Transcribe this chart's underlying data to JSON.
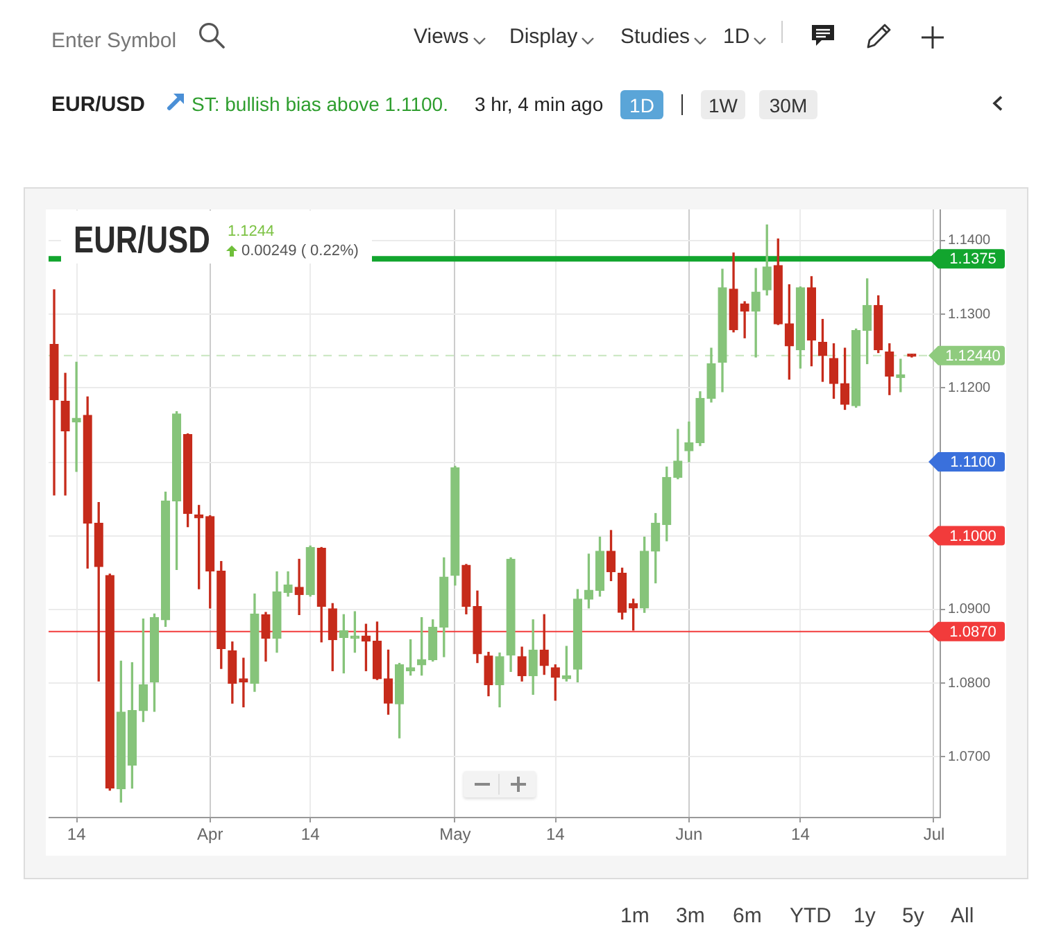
{
  "chart_data": {
    "type": "candlestick",
    "title": "EUR/USD",
    "annotations": [
      "Enter Symbol",
      "Views",
      "Display",
      "Studies",
      "1D",
      "EUR/USD",
      "ST: bullish bias above 1.1100.",
      "3 hr, 4 min ago",
      "1D",
      "1W",
      "30M",
      "1.1244",
      "0.00249 ( 0.22%)",
      "1m",
      "3m",
      "6m",
      "YTD",
      "1y",
      "5y",
      "All",
      "1.1100",
      "1.1000"
    ],
    "categories": [
      null,
      null,
      "14",
      null,
      null,
      null,
      null,
      null,
      null,
      null,
      null,
      null,
      null,
      null,
      "Apr",
      null,
      null,
      null,
      null,
      null,
      null,
      null,
      null,
      "14",
      null,
      null,
      null,
      null,
      null,
      null,
      null,
      null,
      null,
      null,
      null,
      null,
      "May",
      null,
      null,
      null,
      null,
      null,
      null,
      null,
      null,
      "14",
      null,
      null,
      null,
      null,
      null,
      null,
      null,
      null,
      null,
      null,
      null,
      "Jun",
      null,
      null,
      null,
      null,
      null,
      null,
      null,
      null,
      null,
      "14",
      null,
      null,
      null,
      null,
      null,
      null,
      null,
      null,
      null,
      null,
      null,
      "Jul"
    ],
    "ohlc": [
      [
        1.1259,
        1.1333,
        1.1055,
        1.1184
      ],
      [
        1.1182,
        1.122,
        1.1055,
        1.1142
      ],
      [
        1.1154,
        1.1235,
        1.1087,
        1.1159
      ],
      [
        1.1163,
        1.1188,
        1.0956,
        1.1017
      ],
      [
        1.1017,
        1.1045,
        1.0803,
        1.0958
      ],
      [
        1.0946,
        1.0948,
        1.0655,
        1.0658
      ],
      [
        1.0657,
        1.083,
        1.0639,
        1.0761
      ],
      [
        1.0689,
        1.0828,
        1.0658,
        1.0763
      ],
      [
        1.0763,
        1.0887,
        1.0748,
        1.0798
      ],
      [
        1.0802,
        1.0894,
        1.0762,
        1.0889
      ],
      [
        1.0886,
        1.1059,
        1.0877,
        1.1047
      ],
      [
        1.1047,
        1.1168,
        1.0954,
        1.1165
      ],
      [
        1.1137,
        1.1138,
        1.1012,
        1.103
      ],
      [
        1.1028,
        1.1041,
        1.0928,
        1.1024
      ],
      [
        1.1026,
        1.1027,
        1.0902,
        1.0952
      ],
      [
        1.0952,
        1.0965,
        1.082,
        1.0847
      ],
      [
        1.0844,
        1.0856,
        1.0773,
        1.08
      ],
      [
        1.0806,
        1.0834,
        1.0768,
        1.0802
      ],
      [
        1.08,
        1.0921,
        1.0789,
        1.0894
      ],
      [
        1.0893,
        1.0896,
        1.083,
        1.0861
      ],
      [
        1.0861,
        1.0951,
        1.0842,
        1.0924
      ],
      [
        1.0923,
        1.0951,
        1.0918,
        1.0933
      ],
      [
        1.093,
        1.0968,
        1.0893,
        1.092
      ],
      [
        1.092,
        1.0986,
        1.0918,
        1.0984
      ],
      [
        1.0983,
        1.0984,
        1.0856,
        1.0904
      ],
      [
        1.0901,
        1.0908,
        1.0817,
        1.0859
      ],
      [
        1.0862,
        1.0893,
        1.0814,
        1.0871
      ],
      [
        1.0861,
        1.0897,
        1.0842,
        1.0864
      ],
      [
        1.0864,
        1.088,
        1.0817,
        1.0857
      ],
      [
        1.0857,
        1.0883,
        1.0805,
        1.0806
      ],
      [
        1.0806,
        1.0845,
        1.0758,
        1.0773
      ],
      [
        1.0772,
        1.0827,
        1.0726,
        1.0825
      ],
      [
        1.0817,
        1.0859,
        1.0811,
        1.0821
      ],
      [
        1.0825,
        1.0889,
        1.0811,
        1.0832
      ],
      [
        1.0832,
        1.0886,
        1.083,
        1.0876
      ],
      [
        1.0876,
        1.097,
        1.0836,
        1.0944
      ],
      [
        1.0946,
        1.1094,
        1.0933,
        1.1092
      ],
      [
        1.096,
        1.0961,
        1.0894,
        1.0904
      ],
      [
        1.0904,
        1.0925,
        1.0828,
        1.084
      ],
      [
        1.0837,
        1.0842,
        1.0783,
        1.0798
      ],
      [
        1.0798,
        1.0841,
        1.0768,
        1.0836
      ],
      [
        1.0838,
        1.097,
        1.0816,
        1.0968
      ],
      [
        1.0836,
        1.0849,
        1.0803,
        1.081
      ],
      [
        1.081,
        1.0886,
        1.0785,
        1.0845
      ],
      [
        1.0845,
        1.0893,
        1.0812,
        1.0824
      ],
      [
        1.0821,
        1.0825,
        1.0777,
        1.0808
      ],
      [
        1.0806,
        1.085,
        1.0803,
        1.081
      ],
      [
        1.0819,
        1.0927,
        1.0802,
        1.0914
      ],
      [
        1.0914,
        1.0975,
        1.0902,
        1.0926
      ],
      [
        1.0926,
        1.0998,
        1.0918,
        1.0979
      ],
      [
        1.0979,
        1.1007,
        1.0939,
        1.0951
      ],
      [
        1.0949,
        1.0956,
        1.0887,
        1.0896
      ],
      [
        1.0908,
        1.0914,
        1.0872,
        1.0902
      ],
      [
        1.0902,
        1.0998,
        1.0896,
        1.0979
      ],
      [
        1.0979,
        1.103,
        1.0936,
        1.1017
      ],
      [
        1.1015,
        1.1093,
        1.0993,
        1.1079
      ],
      [
        1.1079,
        1.1144,
        1.1077,
        1.1101
      ],
      [
        1.1115,
        1.1154,
        1.11,
        1.1126
      ],
      [
        1.1126,
        1.1195,
        1.1122,
        1.1186
      ],
      [
        1.1186,
        1.1254,
        1.1181,
        1.1233
      ],
      [
        1.1235,
        1.1361,
        1.1195,
        1.1336
      ],
      [
        1.1334,
        1.1383,
        1.1276,
        1.1279
      ],
      [
        1.1314,
        1.1317,
        1.1268,
        1.1304
      ],
      [
        1.1304,
        1.1362,
        1.1242,
        1.133
      ],
      [
        1.1333,
        1.1421,
        1.1326,
        1.1364
      ],
      [
        1.1366,
        1.1402,
        1.1286,
        1.1287
      ],
      [
        1.1287,
        1.134,
        1.1212,
        1.1257
      ],
      [
        1.1252,
        1.1337,
        1.1227,
        1.1336
      ],
      [
        1.1336,
        1.1351,
        1.123,
        1.1265
      ],
      [
        1.1262,
        1.1293,
        1.1209,
        1.1244
      ],
      [
        1.124,
        1.126,
        1.1186,
        1.1206
      ],
      [
        1.1206,
        1.1254,
        1.1171,
        1.1178
      ],
      [
        1.1176,
        1.128,
        1.1174,
        1.1278
      ],
      [
        1.1278,
        1.1348,
        1.1233,
        1.1312
      ],
      [
        1.1312,
        1.1325,
        1.1248,
        1.1252
      ],
      [
        1.1249,
        1.126,
        1.1191,
        1.1216
      ],
      [
        1.1214,
        1.1239,
        1.1195,
        1.1218
      ],
      [
        1.1246,
        1.1246,
        1.1242,
        1.1243
      ],
      null,
      null
    ],
    "colors": [
      "#c62b1b",
      "#c62b1b",
      "#86c47a",
      "#c62b1b",
      "#c62b1b",
      "#c62b1b",
      "#86c47a",
      "#86c47a",
      "#86c47a",
      "#86c47a",
      "#86c47a",
      "#86c47a",
      "#c62b1b",
      "#c62b1b",
      "#c62b1b",
      "#c62b1b",
      "#c62b1b",
      "#c62b1b",
      "#86c47a",
      "#c62b1b",
      "#86c47a",
      "#86c47a",
      "#c62b1b",
      "#86c47a",
      "#c62b1b",
      "#c62b1b",
      "#86c47a",
      "#86c47a",
      "#c62b1b",
      "#c62b1b",
      "#c62b1b",
      "#86c47a",
      "#86c47a",
      "#86c47a",
      "#86c47a",
      "#86c47a",
      "#86c47a",
      "#c62b1b",
      "#c62b1b",
      "#c62b1b",
      "#86c47a",
      "#86c47a",
      "#c62b1b",
      "#86c47a",
      "#c62b1b",
      "#c62b1b",
      "#86c47a",
      "#86c47a",
      "#86c47a",
      "#86c47a",
      "#c62b1b",
      "#c62b1b",
      "#c62b1b",
      "#86c47a",
      "#86c47a",
      "#86c47a",
      "#86c47a",
      "#86c47a",
      "#86c47a",
      "#86c47a",
      "#86c47a",
      "#c62b1b",
      "#c62b1b",
      "#86c47a",
      "#86c47a",
      "#c62b1b",
      "#c62b1b",
      "#86c47a",
      "#c62b1b",
      "#c62b1b",
      "#c62b1b",
      "#c62b1b",
      "#86c47a",
      "#86c47a",
      "#c62b1b",
      "#c62b1b",
      "#86c47a",
      "#c62b1b",
      null,
      null
    ],
    "ylim": [
      1.0619,
      1.1442
    ],
    "yticks": [
      {
        "value": 1.07,
        "label": "1.0700"
      },
      {
        "value": 1.08,
        "label": "1.0800"
      },
      {
        "value": 1.09,
        "label": "1.0900"
      },
      {
        "value": 1.1,
        "label": null
      },
      {
        "value": 1.11,
        "label": null
      },
      {
        "value": 1.12,
        "label": "1.1200"
      },
      {
        "value": 1.13,
        "label": "1.1300"
      },
      {
        "value": 1.14,
        "label": "1.1400"
      }
    ],
    "ref_lines": [
      {
        "axis": "y",
        "value": 1.1375,
        "label": "1.1375",
        "color": "#12a52e",
        "line_style": "solid"
      },
      {
        "axis": "y",
        "value": 1.1244,
        "label": "1.12440",
        "color": "#8fcb7e",
        "line_style": "dashed"
      },
      {
        "axis": "y",
        "value": 1.087,
        "label": "1.0870",
        "color": "#f23b3b",
        "line_style": "solid"
      }
    ],
    "grid": true
  }
}
